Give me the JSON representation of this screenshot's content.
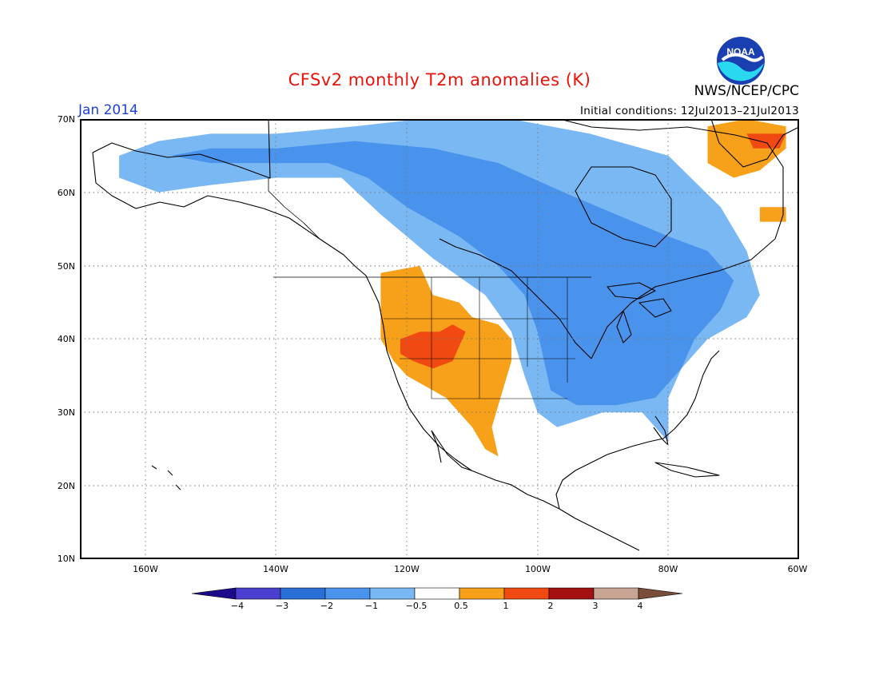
{
  "title": "CFSv2 monthly T2m anomalies (K)",
  "agency": "NWS/NCEP/CPC",
  "logo_text": "NOAA",
  "month": "Jan 2014",
  "initial_conditions": "Initial conditions: 12Jul2013–21Jul2013",
  "lat_labels": [
    "70N",
    "60N",
    "50N",
    "40N",
    "30N",
    "20N",
    "10N"
  ],
  "lon_labels": [
    "160W",
    "140W",
    "120W",
    "100W",
    "80W",
    "60W"
  ],
  "colorbar": {
    "labels": [
      "−4",
      "−3",
      "−2",
      "−1",
      "−0.5",
      "0.5",
      "1",
      "2",
      "3",
      "4"
    ],
    "colors": [
      "#1b0a8a",
      "#4a3fcf",
      "#2a6fd8",
      "#4a93ec",
      "#7ab8f3",
      "#ffffff",
      "#f7a11a",
      "#f04a12",
      "#a41010",
      "#c8a494",
      "#7a4c3a"
    ]
  },
  "map_extent": {
    "lon": [
      -170,
      -60
    ],
    "lat": [
      10,
      70
    ]
  },
  "anomaly_regions": [
    {
      "level": "-1",
      "points": [
        [
          -164,
          65
        ],
        [
          -158,
          67
        ],
        [
          -150,
          68
        ],
        [
          -140,
          68
        ],
        [
          -128,
          69
        ],
        [
          -118,
          70
        ],
        [
          -104,
          70
        ],
        [
          -92,
          68
        ],
        [
          -80,
          65
        ],
        [
          -72,
          58
        ],
        [
          -68,
          52
        ],
        [
          -66,
          46
        ],
        [
          -68,
          43
        ],
        [
          -74,
          40
        ],
        [
          -78,
          36
        ],
        [
          -80,
          32
        ],
        [
          -80,
          26
        ],
        [
          -84,
          30
        ],
        [
          -90,
          30
        ],
        [
          -97,
          28
        ],
        [
          -100,
          30
        ],
        [
          -102,
          35
        ],
        [
          -104,
          41
        ],
        [
          -108,
          46
        ],
        [
          -116,
          51
        ],
        [
          -124,
          57
        ],
        [
          -130,
          62
        ],
        [
          -140,
          62
        ],
        [
          -150,
          61
        ],
        [
          -158,
          60
        ],
        [
          -164,
          62
        ]
      ]
    },
    {
      "level": "-2",
      "points": [
        [
          -128,
          67
        ],
        [
          -116,
          66
        ],
        [
          -106,
          64
        ],
        [
          -96,
          60
        ],
        [
          -88,
          57
        ],
        [
          -80,
          54
        ],
        [
          -74,
          52
        ],
        [
          -70,
          48
        ],
        [
          -72,
          44
        ],
        [
          -76,
          40
        ],
        [
          -78,
          36
        ],
        [
          -82,
          32
        ],
        [
          -88,
          31
        ],
        [
          -94,
          31
        ],
        [
          -98,
          33
        ],
        [
          -99,
          37
        ],
        [
          -100,
          41
        ],
        [
          -102,
          46
        ],
        [
          -106,
          50
        ],
        [
          -112,
          54
        ],
        [
          -120,
          58
        ],
        [
          -126,
          62
        ],
        [
          -132,
          64
        ],
        [
          -140,
          64
        ],
        [
          -150,
          64
        ],
        [
          -156,
          65
        ],
        [
          -150,
          66
        ],
        [
          -140,
          66
        ]
      ]
    },
    {
      "level": "0.5",
      "points": [
        [
          -124,
          49
        ],
        [
          -118,
          50
        ],
        [
          -116,
          46
        ],
        [
          -112,
          45
        ],
        [
          -110,
          43
        ],
        [
          -106,
          42
        ],
        [
          -104,
          40
        ],
        [
          -104,
          37
        ],
        [
          -105,
          34
        ],
        [
          -106,
          31
        ],
        [
          -107,
          28
        ],
        [
          -106,
          24
        ],
        [
          -108,
          25
        ],
        [
          -110,
          28
        ],
        [
          -112,
          30
        ],
        [
          -114,
          32
        ],
        [
          -116,
          33
        ],
        [
          -118,
          34
        ],
        [
          -120,
          35
        ],
        [
          -122,
          37
        ],
        [
          -124,
          40
        ],
        [
          -124,
          44
        ]
      ]
    },
    {
      "level": "1",
      "points": [
        [
          -121,
          40
        ],
        [
          -118,
          41
        ],
        [
          -115,
          41
        ],
        [
          -113,
          42
        ],
        [
          -111,
          41
        ],
        [
          -112,
          39
        ],
        [
          -113,
          37
        ],
        [
          -116,
          36
        ],
        [
          -119,
          37
        ],
        [
          -121,
          38
        ]
      ]
    },
    {
      "level": "0.5",
      "points": [
        [
          -74,
          69
        ],
        [
          -68,
          70
        ],
        [
          -62,
          69
        ],
        [
          -62,
          66
        ],
        [
          -66,
          63
        ],
        [
          -70,
          62
        ],
        [
          -74,
          64
        ]
      ]
    },
    {
      "level": "1",
      "points": [
        [
          -68,
          68
        ],
        [
          -62,
          68
        ],
        [
          -63,
          66
        ],
        [
          -67,
          66
        ]
      ]
    },
    {
      "level": "0.5",
      "points": [
        [
          -66,
          58
        ],
        [
          -62,
          58
        ],
        [
          -62,
          56
        ],
        [
          -66,
          56
        ]
      ]
    }
  ]
}
